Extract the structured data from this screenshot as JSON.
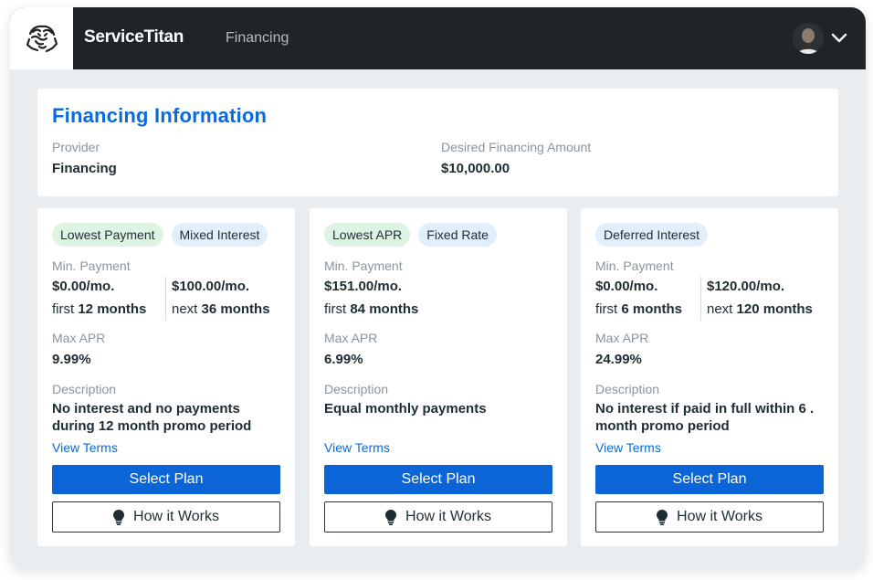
{
  "header": {
    "brand": "ServiceTitan",
    "nav_item": "Financing",
    "logo_icon": "titan-logo-icon",
    "avatar_icon": "user-avatar",
    "menu_icon": "chevron-down-icon"
  },
  "info": {
    "title": "Financing Information",
    "provider_label": "Provider",
    "provider_value": "Financing",
    "amount_label": "Desired Financing Amount",
    "amount_value": "$10,000.00"
  },
  "plans": [
    {
      "tags": [
        "Lowest Payment",
        "Mixed Interest"
      ],
      "min_payment_label": "Min. Payment",
      "payment_1": "$0.00/mo.",
      "period_1_prefix": "first",
      "period_1_value": "12 months",
      "payment_2": "$100.00/mo.",
      "period_2_prefix": "next",
      "period_2_value": "36 months",
      "apr_label": "Max APR",
      "apr_value": "9.99%",
      "description_label": "Description",
      "description": "No interest and no payments during 12 month promo period",
      "terms_link": "View Terms",
      "select_button": "Select Plan",
      "how_button": "How it Works"
    },
    {
      "tags": [
        "Lowest APR",
        "Fixed Rate"
      ],
      "min_payment_label": "Min. Payment",
      "payment_1": "$151.00/mo.",
      "period_1_prefix": "first",
      "period_1_value": "84 months",
      "apr_label": "Max APR",
      "apr_value": "6.99%",
      "description_label": "Description",
      "description": "Equal monthly payments",
      "terms_link": "View Terms",
      "select_button": "Select Plan",
      "how_button": "How it Works"
    },
    {
      "tags": [
        "Deferred Interest"
      ],
      "min_payment_label": "Min. Payment",
      "payment_1": "$0.00/mo.",
      "period_1_prefix": "first",
      "period_1_value": "6 months",
      "payment_2": "$120.00/mo.",
      "period_2_prefix": "next",
      "period_2_value": "120 months",
      "apr_label": "Max APR",
      "apr_value": "24.99%",
      "description_label": "Description",
      "description": "No interest if paid in full within 6 . month promo period",
      "terms_link": "View Terms",
      "select_button": "Select Plan",
      "how_button": "How it Works"
    }
  ],
  "colors": {
    "accent": "#0b6ad8",
    "topbar": "#1f2428",
    "tag_green": "#ddf3e3",
    "tag_blue": "#e1eefb"
  }
}
